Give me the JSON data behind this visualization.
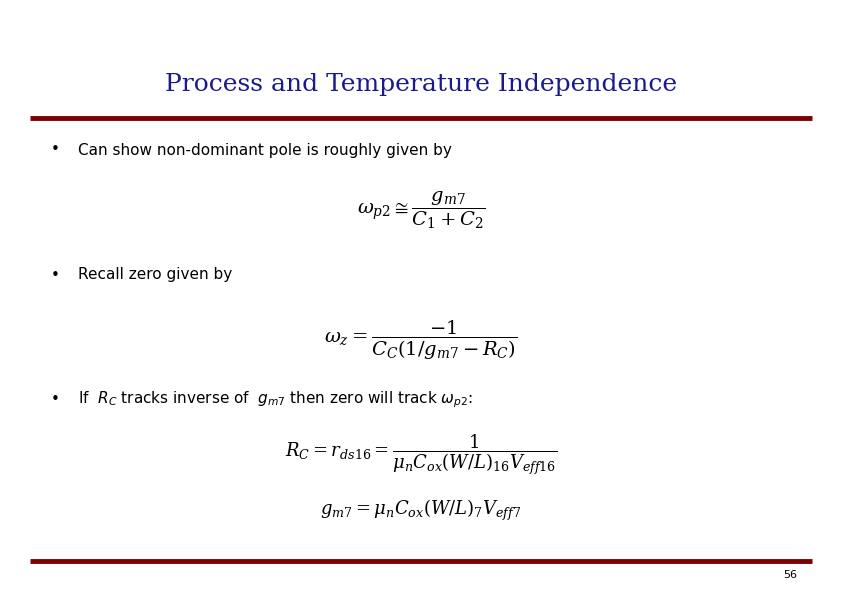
{
  "title": "Process and Temperature Independence",
  "title_color": "#1a1a8c",
  "title_fontsize": 18,
  "slide_number": "56",
  "bg_color": "#ffffff",
  "line_color": "#7b0000",
  "bullet_color": "#000000",
  "bullet1_text": "Can show non-dominant pole is roughly given by",
  "bullet2_text": "Recall zero given by",
  "text_color": "#000000",
  "formula_color": "#000000"
}
